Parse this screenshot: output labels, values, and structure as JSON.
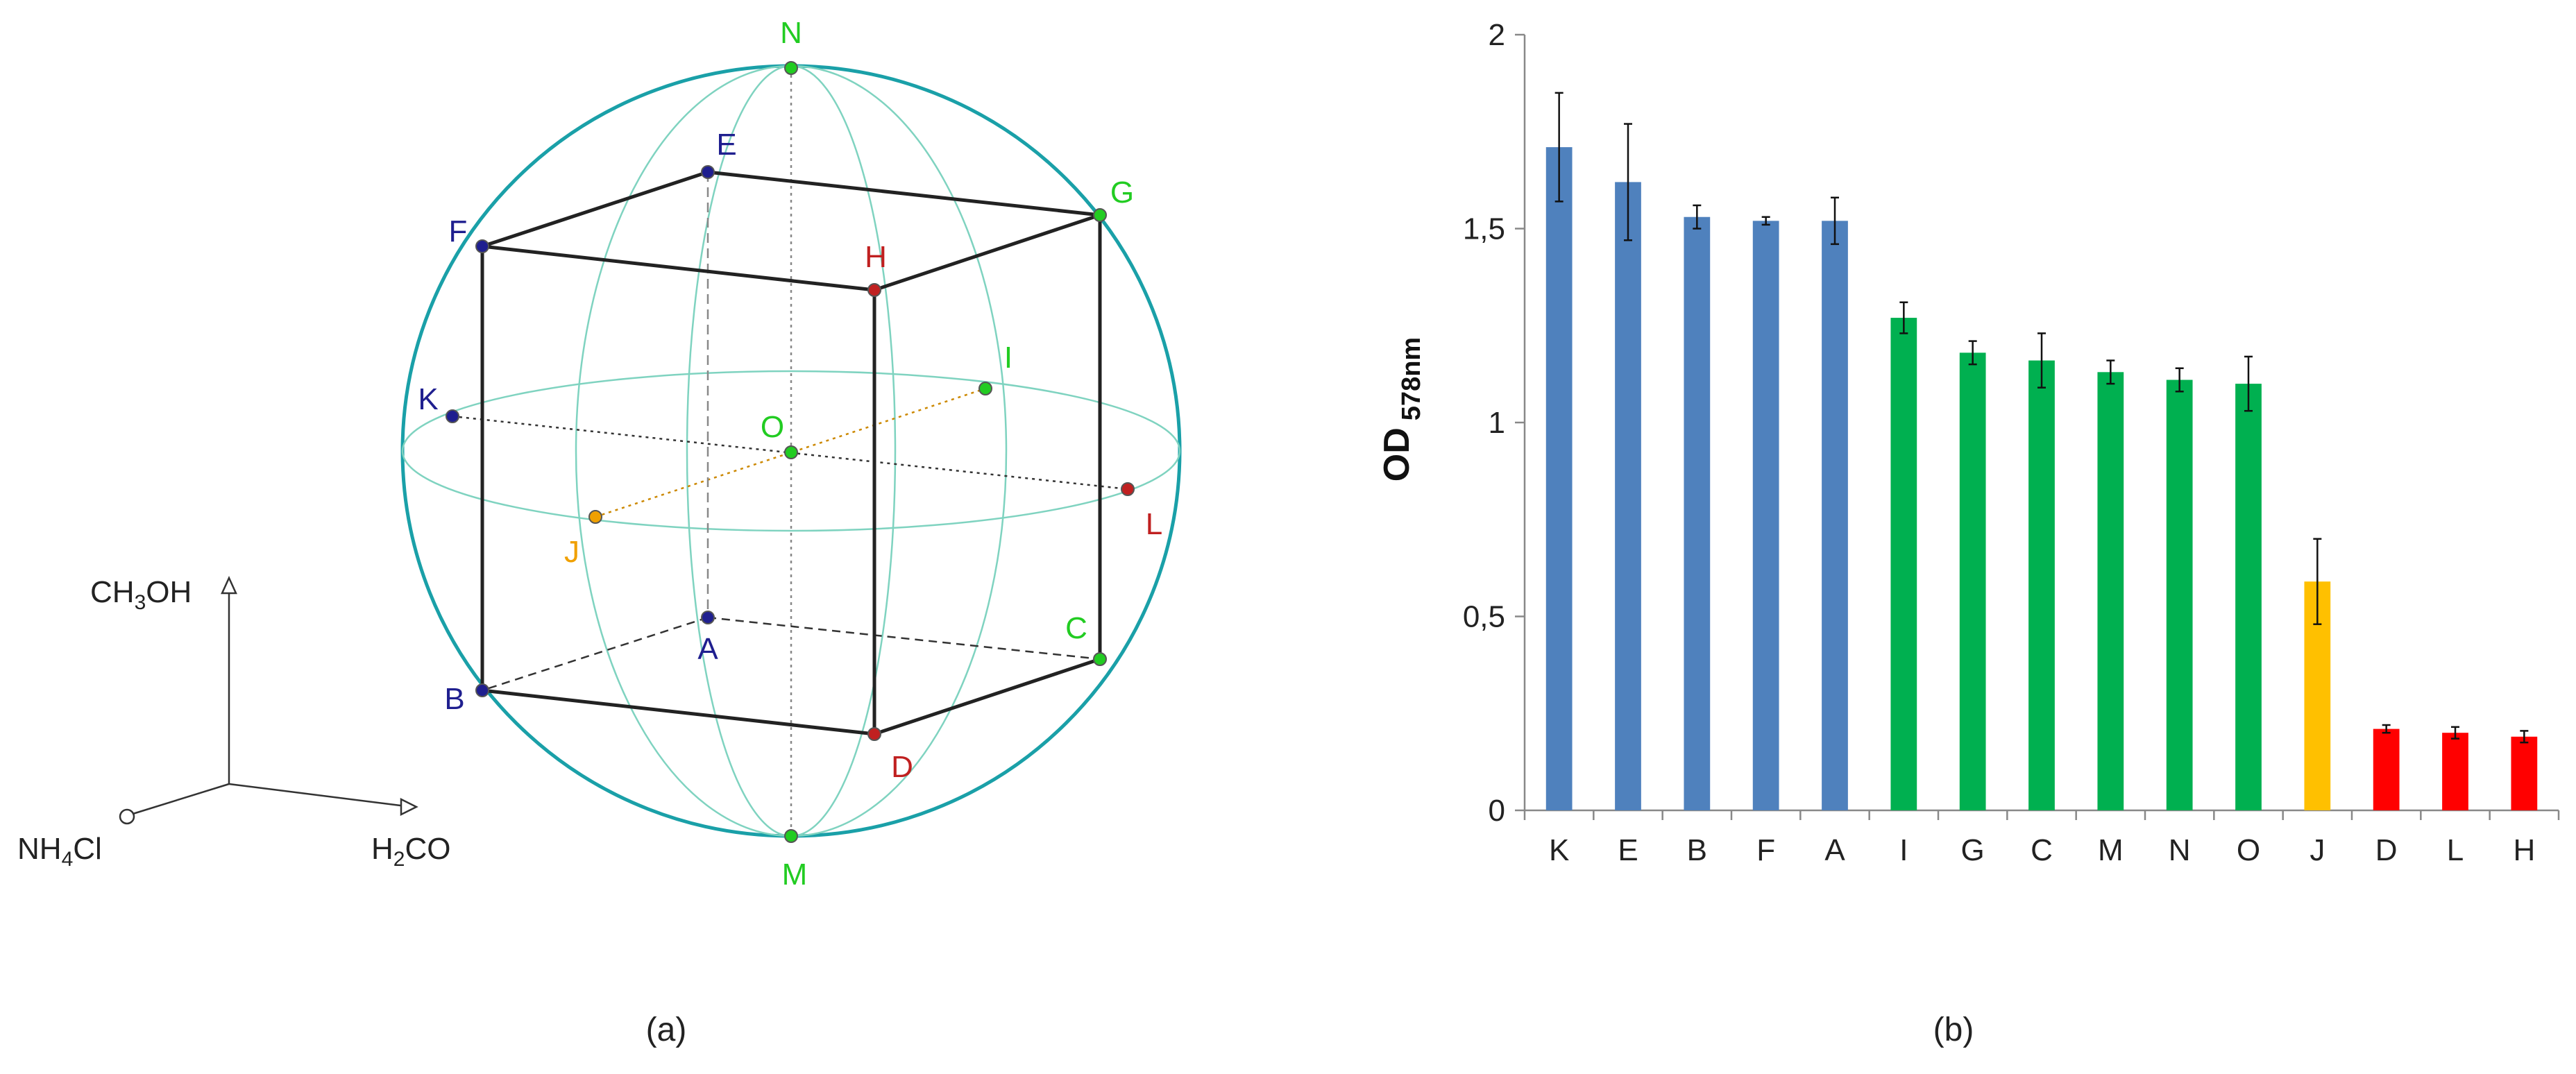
{
  "panel_a": {
    "caption": "(a)",
    "points": [
      {
        "id": "N",
        "color": "#22cc22"
      },
      {
        "id": "E",
        "color": "#1f1f8f"
      },
      {
        "id": "G",
        "color": "#22cc22"
      },
      {
        "id": "F",
        "color": "#1f1f8f"
      },
      {
        "id": "H",
        "color": "#c02020"
      },
      {
        "id": "I",
        "color": "#22cc22"
      },
      {
        "id": "K",
        "color": "#1f1f8f"
      },
      {
        "id": "O",
        "color": "#22cc22"
      },
      {
        "id": "L",
        "color": "#c02020"
      },
      {
        "id": "J",
        "color": "#f0a000"
      },
      {
        "id": "C",
        "color": "#22cc22"
      },
      {
        "id": "A",
        "color": "#1f1f8f"
      },
      {
        "id": "B",
        "color": "#1f1f8f"
      },
      {
        "id": "D",
        "color": "#c02020"
      },
      {
        "id": "M",
        "color": "#22cc22"
      }
    ],
    "axes_legend": {
      "ch3oh": {
        "base": "CH",
        "sub1": "3",
        "rest": "OH"
      },
      "nh4cl": {
        "base": "NH",
        "sub1": "4",
        "rest": "Cl"
      },
      "h2co": {
        "base": "H",
        "sub1": "2",
        "rest": "CO"
      }
    },
    "colors": {
      "sphere": "#1aa0a8",
      "grid": "#7fd3c0",
      "cube": "#222222"
    }
  },
  "chart_data": {
    "type": "bar",
    "caption": "(b)",
    "ylabel_main": "OD",
    "ylabel_sub": "578nm",
    "categories": [
      "K",
      "E",
      "B",
      "F",
      "A",
      "I",
      "G",
      "C",
      "M",
      "N",
      "O",
      "J",
      "D",
      "L",
      "H"
    ],
    "values": [
      1.71,
      1.62,
      1.53,
      1.52,
      1.52,
      1.27,
      1.18,
      1.16,
      1.13,
      1.11,
      1.1,
      0.59,
      0.21,
      0.2,
      0.19
    ],
    "errors": [
      0.14,
      0.15,
      0.03,
      0.01,
      0.06,
      0.04,
      0.03,
      0.07,
      0.03,
      0.03,
      0.07,
      0.11,
      0.01,
      0.015,
      0.015
    ],
    "bar_colors": [
      "#4f81bd",
      "#4f81bd",
      "#4f81bd",
      "#4f81bd",
      "#4f81bd",
      "#00b050",
      "#00b050",
      "#00b050",
      "#00b050",
      "#00b050",
      "#00b050",
      "#ffc000",
      "#ff0000",
      "#ff0000",
      "#ff0000"
    ],
    "yticks": [
      0,
      0.5,
      1,
      1.5,
      2
    ],
    "ytick_labels": [
      "0",
      "0,5",
      "1",
      "1,5",
      "2"
    ],
    "ylim": [
      0,
      2
    ],
    "grid": false
  }
}
